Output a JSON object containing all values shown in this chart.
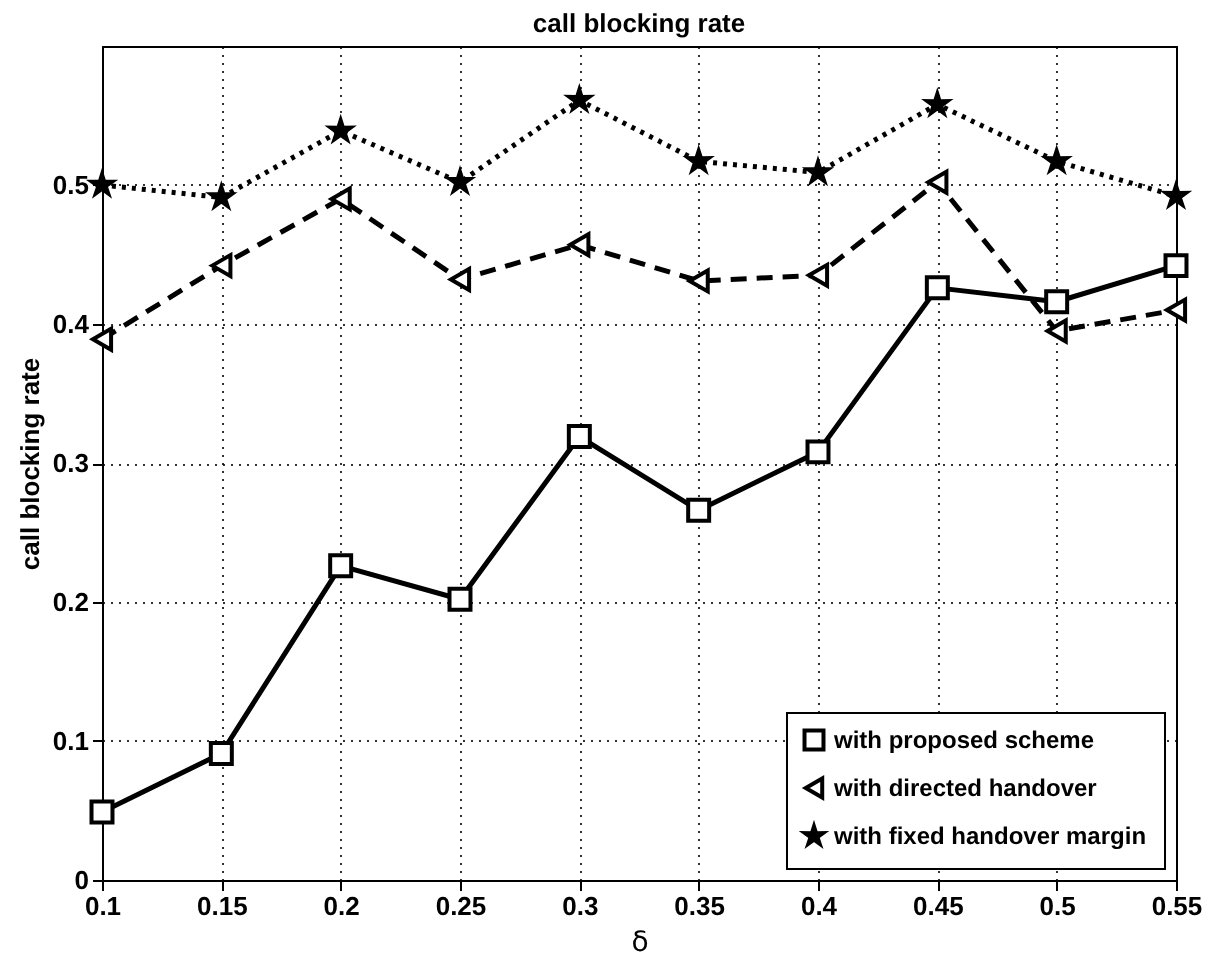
{
  "chart_data": {
    "type": "line",
    "title": "call blocking rate",
    "xlabel": "δ",
    "ylabel": "call blocking rate",
    "x": [
      0.1,
      0.15,
      0.2,
      0.25,
      0.3,
      0.35,
      0.4,
      0.45,
      0.5,
      0.55
    ],
    "series": [
      {
        "name": "with proposed scheme",
        "color": "#000000",
        "marker": "square",
        "line_style": "solid",
        "values": [
          0.049,
          0.091,
          0.226,
          0.202,
          0.319,
          0.266,
          0.308,
          0.426,
          0.416,
          0.442
        ]
      },
      {
        "name": "with directed handover",
        "color": "#000000",
        "marker": "triangle-left",
        "line_style": "dashed",
        "values": [
          0.389,
          0.442,
          0.49,
          0.432,
          0.457,
          0.431,
          0.435,
          0.502,
          0.395,
          0.41
        ]
      },
      {
        "name": "with fixed handover margin",
        "color": "#000000",
        "marker": "star",
        "line_style": "dotted",
        "values": [
          0.5,
          0.491,
          0.539,
          0.502,
          0.561,
          0.517,
          0.509,
          0.558,
          0.517,
          0.492
        ]
      }
    ],
    "xlim": [
      0.1,
      0.55
    ],
    "xticks": [
      0.1,
      0.15,
      0.2,
      0.25,
      0.3,
      0.35,
      0.4,
      0.45,
      0.5,
      0.55
    ],
    "ylim": [
      0,
      0.6
    ],
    "yticks": [
      0,
      0.1,
      0.2,
      0.3,
      0.4,
      0.5
    ],
    "grid": true,
    "legend": "bottom right"
  }
}
